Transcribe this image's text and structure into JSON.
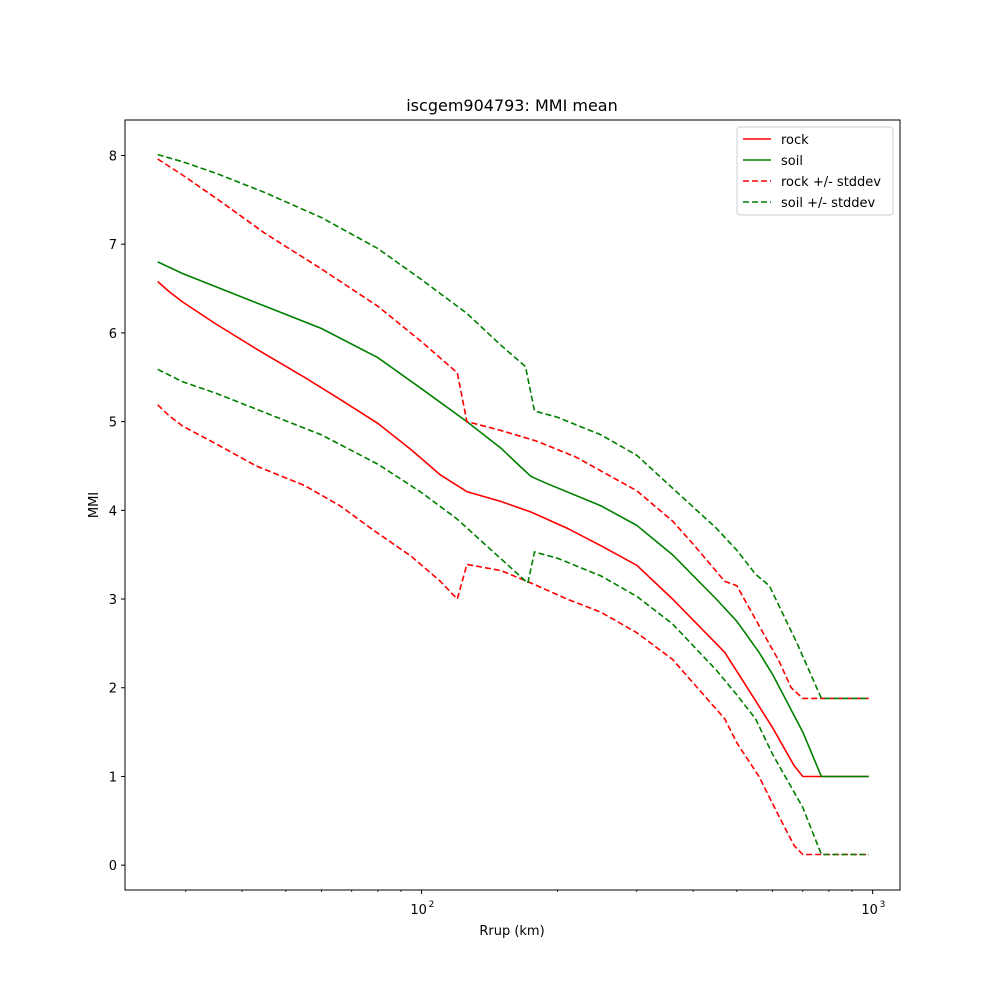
{
  "chart_data": {
    "type": "line",
    "title": "iscgem904793: MMI mean",
    "xlabel": "Rrup (km)",
    "ylabel": "MMI",
    "xscale": "log",
    "xlim": [
      22,
      1150
    ],
    "ylim": [
      -0.28,
      8.4
    ],
    "xticks": [
      {
        "value": 100,
        "base": "10",
        "exp": "2"
      },
      {
        "value": 1000,
        "base": "10",
        "exp": "3"
      }
    ],
    "yticks": [
      "0",
      "1",
      "2",
      "3",
      "4",
      "5",
      "6",
      "7",
      "8"
    ],
    "grid": false,
    "legend_position": "top-right",
    "series": [
      {
        "name": "rock",
        "color": "#ff0000",
        "dash": "solid",
        "points": [
          [
            26,
            6.58
          ],
          [
            27.5,
            6.47
          ],
          [
            29.5,
            6.35
          ],
          [
            35,
            6.1
          ],
          [
            43,
            5.82
          ],
          [
            55,
            5.5
          ],
          [
            66,
            5.25
          ],
          [
            80,
            4.98
          ],
          [
            95,
            4.68
          ],
          [
            110,
            4.4
          ],
          [
            126,
            4.21
          ],
          [
            150,
            4.1
          ],
          [
            175,
            3.98
          ],
          [
            210,
            3.8
          ],
          [
            250,
            3.6
          ],
          [
            300,
            3.38
          ],
          [
            360,
            3.0
          ],
          [
            470,
            2.4
          ],
          [
            520,
            2.05
          ],
          [
            600,
            1.55
          ],
          [
            670,
            1.12
          ],
          [
            700,
            1.0
          ],
          [
            980,
            1.0
          ]
        ]
      },
      {
        "name": "soil",
        "color": "#008000",
        "dash": "solid",
        "points": [
          [
            26,
            6.8
          ],
          [
            29.5,
            6.67
          ],
          [
            35,
            6.52
          ],
          [
            45,
            6.3
          ],
          [
            60,
            6.05
          ],
          [
            80,
            5.72
          ],
          [
            100,
            5.37
          ],
          [
            126,
            5.0
          ],
          [
            150,
            4.7
          ],
          [
            165,
            4.5
          ],
          [
            175,
            4.38
          ],
          [
            190,
            4.3
          ],
          [
            250,
            4.05
          ],
          [
            300,
            3.83
          ],
          [
            360,
            3.5
          ],
          [
            450,
            3.0
          ],
          [
            500,
            2.75
          ],
          [
            560,
            2.4
          ],
          [
            600,
            2.15
          ],
          [
            700,
            1.5
          ],
          [
            770,
            1.0
          ],
          [
            980,
            1.0
          ]
        ]
      },
      {
        "name": "rock +/- stddev",
        "color": "#ff0000",
        "dash": "dashed",
        "points": [
          [
            26,
            7.96
          ],
          [
            29.5,
            7.78
          ],
          [
            35,
            7.52
          ],
          [
            45,
            7.12
          ],
          [
            60,
            6.72
          ],
          [
            80,
            6.3
          ],
          [
            100,
            5.9
          ],
          [
            120,
            5.55
          ],
          [
            126,
            5.0
          ],
          [
            150,
            4.9
          ],
          [
            180,
            4.78
          ],
          [
            220,
            4.6
          ],
          [
            300,
            4.22
          ],
          [
            360,
            3.88
          ],
          [
            400,
            3.62
          ],
          [
            470,
            3.2
          ],
          [
            500,
            3.15
          ],
          [
            560,
            2.7
          ],
          [
            620,
            2.3
          ],
          [
            660,
            2.0
          ],
          [
            700,
            1.88
          ],
          [
            980,
            1.88
          ]
        ]
      },
      {
        "name": "soil +/- stddev",
        "color": "#008000",
        "dash": "dashed",
        "points": [
          [
            26,
            8.01
          ],
          [
            29.5,
            7.93
          ],
          [
            35,
            7.8
          ],
          [
            45,
            7.58
          ],
          [
            60,
            7.3
          ],
          [
            80,
            6.95
          ],
          [
            100,
            6.6
          ],
          [
            126,
            6.22
          ],
          [
            150,
            5.86
          ],
          [
            170,
            5.62
          ],
          [
            178,
            5.12
          ],
          [
            200,
            5.05
          ],
          [
            250,
            4.85
          ],
          [
            300,
            4.62
          ],
          [
            360,
            4.25
          ],
          [
            450,
            3.8
          ],
          [
            500,
            3.55
          ],
          [
            550,
            3.28
          ],
          [
            590,
            3.15
          ],
          [
            680,
            2.5
          ],
          [
            770,
            1.88
          ],
          [
            980,
            1.88
          ]
        ]
      },
      {
        "name": "",
        "color": "#ff0000",
        "dash": "dashed",
        "points": [
          [
            26,
            5.19
          ],
          [
            27.5,
            5.07
          ],
          [
            29.5,
            4.95
          ],
          [
            35,
            4.75
          ],
          [
            43,
            4.5
          ],
          [
            55,
            4.28
          ],
          [
            66,
            4.05
          ],
          [
            78,
            3.78
          ],
          [
            95,
            3.48
          ],
          [
            110,
            3.2
          ],
          [
            120,
            3.0
          ],
          [
            126,
            3.39
          ],
          [
            150,
            3.32
          ],
          [
            175,
            3.18
          ],
          [
            210,
            3.0
          ],
          [
            250,
            2.85
          ],
          [
            300,
            2.62
          ],
          [
            360,
            2.32
          ],
          [
            470,
            1.65
          ],
          [
            500,
            1.38
          ],
          [
            560,
            1.0
          ],
          [
            620,
            0.55
          ],
          [
            670,
            0.22
          ],
          [
            700,
            0.12
          ],
          [
            980,
            0.12
          ]
        ]
      },
      {
        "name": "",
        "color": "#008000",
        "dash": "dashed",
        "points": [
          [
            26,
            5.59
          ],
          [
            29.5,
            5.45
          ],
          [
            35,
            5.32
          ],
          [
            45,
            5.1
          ],
          [
            60,
            4.85
          ],
          [
            80,
            4.52
          ],
          [
            100,
            4.2
          ],
          [
            120,
            3.9
          ],
          [
            145,
            3.52
          ],
          [
            172,
            3.18
          ],
          [
            178,
            3.53
          ],
          [
            200,
            3.46
          ],
          [
            250,
            3.26
          ],
          [
            300,
            3.03
          ],
          [
            360,
            2.72
          ],
          [
            450,
            2.2
          ],
          [
            500,
            1.92
          ],
          [
            550,
            1.65
          ],
          [
            600,
            1.25
          ],
          [
            700,
            0.65
          ],
          [
            770,
            0.12
          ],
          [
            980,
            0.12
          ]
        ]
      }
    ]
  }
}
